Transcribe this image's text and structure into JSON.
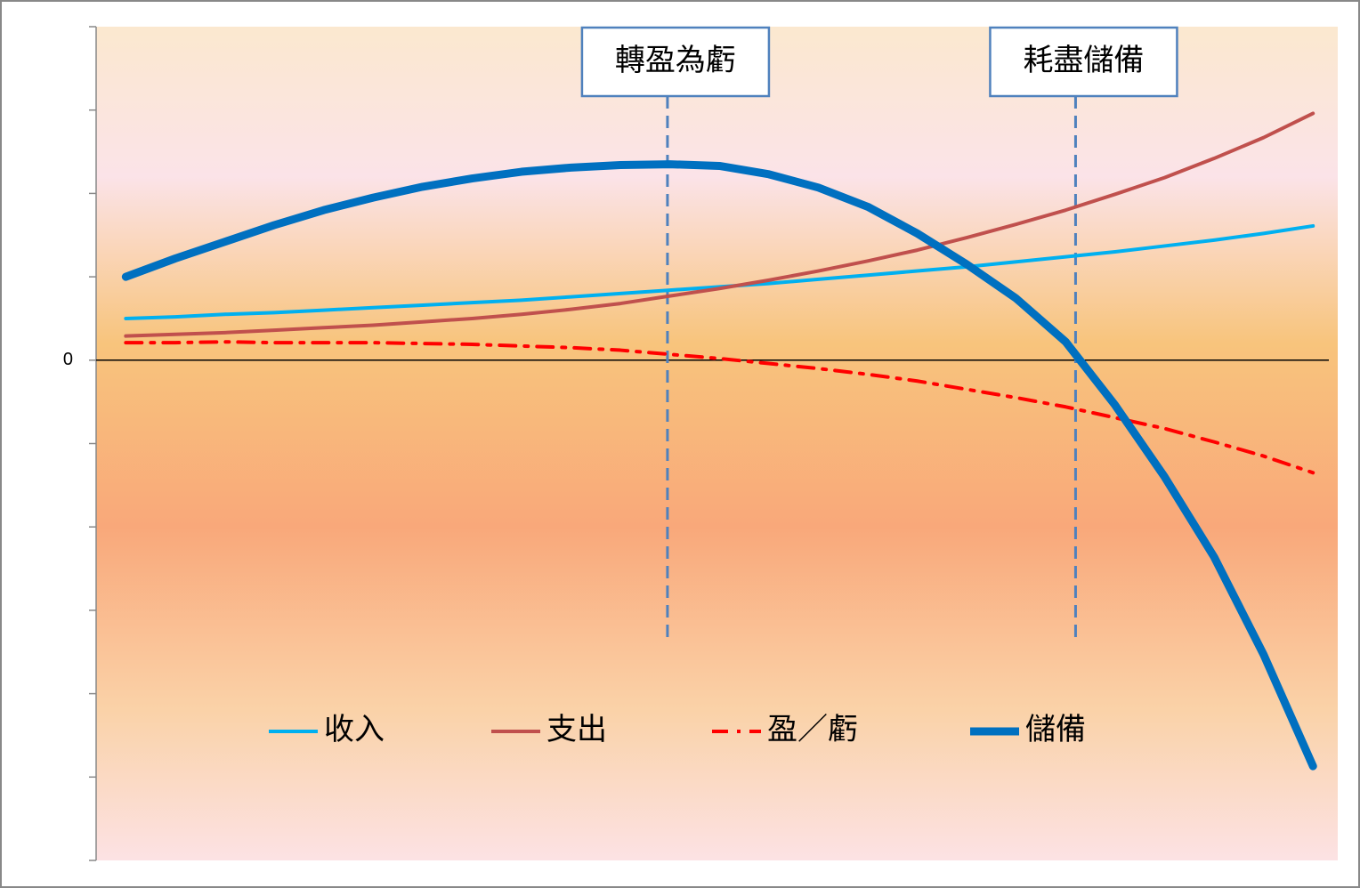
{
  "chart_data": {
    "type": "line",
    "x": [
      0,
      1,
      2,
      3,
      4,
      5,
      6,
      7,
      8,
      9,
      10,
      11,
      12,
      13,
      14,
      15,
      16,
      17,
      18,
      19,
      20,
      21,
      22,
      23,
      24
    ],
    "xlim": [
      -0.6,
      24.5
    ],
    "ylim": [
      -6,
      4
    ],
    "yticks": [
      0
    ],
    "ytick_marks": [
      -6,
      -5,
      -4,
      -3,
      -2,
      -1,
      0,
      1,
      2,
      3,
      4
    ],
    "zero_line": true,
    "legend": "bottom",
    "series": [
      {
        "name": "收入",
        "color": "#00b0f0",
        "width": 4,
        "dash": "solid",
        "values": [
          0.5,
          0.52,
          0.55,
          0.57,
          0.6,
          0.63,
          0.66,
          0.69,
          0.72,
          0.76,
          0.8,
          0.84,
          0.88,
          0.92,
          0.97,
          1.02,
          1.07,
          1.12,
          1.18,
          1.24,
          1.3,
          1.37,
          1.44,
          1.52,
          1.61
        ]
      },
      {
        "name": "支出",
        "color": "#c0504d",
        "width": 4,
        "dash": "solid",
        "values": [
          0.29,
          0.31,
          0.33,
          0.36,
          0.39,
          0.42,
          0.46,
          0.5,
          0.55,
          0.61,
          0.68,
          0.77,
          0.86,
          0.96,
          1.07,
          1.19,
          1.32,
          1.47,
          1.63,
          1.8,
          1.99,
          2.19,
          2.42,
          2.67,
          2.96
        ]
      },
      {
        "name": "盈／虧",
        "color": "#ff0000",
        "width": 4,
        "dash": "dashdot",
        "values": [
          0.21,
          0.21,
          0.22,
          0.21,
          0.21,
          0.21,
          0.2,
          0.19,
          0.17,
          0.15,
          0.12,
          0.07,
          0.02,
          -0.04,
          -0.1,
          -0.17,
          -0.25,
          -0.35,
          -0.45,
          -0.56,
          -0.69,
          -0.82,
          -0.98,
          -1.15,
          -1.35
        ]
      },
      {
        "name": "儲備",
        "color": "#0070c0",
        "width": 9,
        "dash": "solid",
        "values": [
          1.0,
          1.22,
          1.42,
          1.62,
          1.8,
          1.95,
          2.08,
          2.18,
          2.26,
          2.31,
          2.34,
          2.35,
          2.33,
          2.23,
          2.07,
          1.84,
          1.52,
          1.15,
          0.74,
          0.22,
          -0.54,
          -1.4,
          -2.36,
          -3.53,
          -4.87
        ]
      }
    ],
    "annotations": [
      {
        "text": "轉盈為虧",
        "x": 10.95
      },
      {
        "text": "耗盡儲備",
        "x": 19.2
      }
    ]
  }
}
